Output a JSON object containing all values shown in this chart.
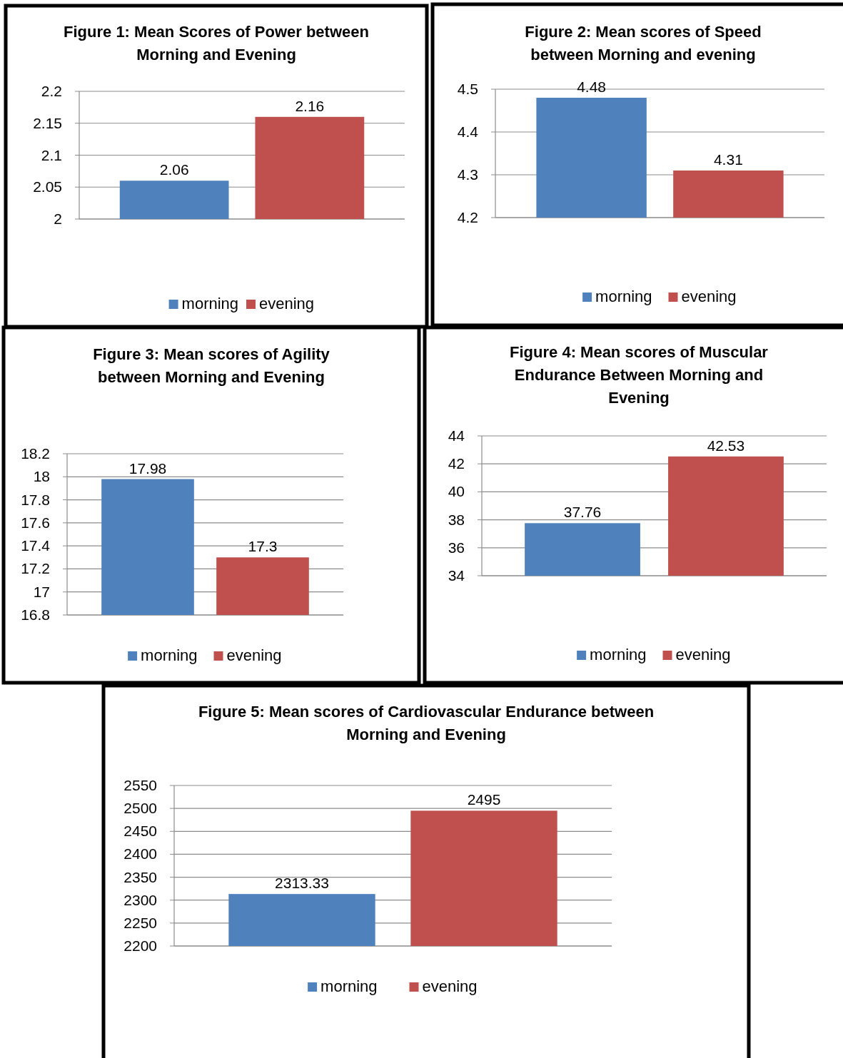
{
  "chart_data": [
    {
      "type": "bar",
      "title": "Figure 1: Mean Scores of Power between Morning and Evening",
      "categories": [
        null
      ],
      "series": [
        {
          "name": "morning",
          "color": "#4f81bd",
          "values": [
            2.06
          ]
        },
        {
          "name": "evening",
          "color": "#c0504d",
          "values": [
            2.16
          ]
        }
      ],
      "ylim": [
        2,
        2.2
      ],
      "yticks": [
        2,
        2.05,
        2.1,
        2.15,
        2.2
      ],
      "grid": "y",
      "legend": "bottom",
      "data_labels": true
    },
    {
      "type": "bar",
      "title": "Figure 2: Mean scores of Speed between Morning and evening",
      "categories": [
        null
      ],
      "series": [
        {
          "name": "morning",
          "color": "#4f81bd",
          "values": [
            4.48
          ]
        },
        {
          "name": "evening",
          "color": "#c0504d",
          "values": [
            4.31
          ]
        }
      ],
      "ylim": [
        4.2,
        4.5
      ],
      "yticks": [
        4.2,
        4.3,
        4.4,
        4.5
      ],
      "grid": "y",
      "legend": "bottom",
      "data_labels": true
    },
    {
      "type": "bar",
      "title": "Figure 3: Mean scores of Agility between Morning and Evening",
      "categories": [
        null
      ],
      "series": [
        {
          "name": "morning",
          "color": "#4f81bd",
          "values": [
            17.98
          ]
        },
        {
          "name": "evening",
          "color": "#c0504d",
          "values": [
            17.3
          ]
        }
      ],
      "ylim": [
        16.8,
        18.2
      ],
      "yticks": [
        16.8,
        17,
        17.2,
        17.4,
        17.6,
        17.8,
        18,
        18.2
      ],
      "grid": "y",
      "legend": "bottom",
      "data_labels": true
    },
    {
      "type": "bar",
      "title": "Figure 4: Mean scores of Muscular Endurance Between Morning and Evening",
      "categories": [
        null
      ],
      "series": [
        {
          "name": "morning",
          "color": "#4f81bd",
          "values": [
            37.76
          ]
        },
        {
          "name": "evening",
          "color": "#c0504d",
          "values": [
            42.53
          ]
        }
      ],
      "ylim": [
        34,
        44
      ],
      "yticks": [
        34,
        36,
        38,
        40,
        42,
        44
      ],
      "grid": "y",
      "legend": "bottom",
      "data_labels": true
    },
    {
      "type": "bar",
      "title": "Figure 5: Mean scores of Cardiovascular Endurance between Morning and Evening",
      "categories": [
        null
      ],
      "series": [
        {
          "name": "morning",
          "color": "#4f81bd",
          "values": [
            2313.33
          ]
        },
        {
          "name": "evening",
          "color": "#c0504d",
          "values": [
            2495
          ]
        }
      ],
      "ylim": [
        2200,
        2550
      ],
      "yticks": [
        2200,
        2250,
        2300,
        2350,
        2400,
        2450,
        2500,
        2550
      ],
      "grid": "y",
      "legend": "bottom",
      "data_labels": true
    }
  ]
}
